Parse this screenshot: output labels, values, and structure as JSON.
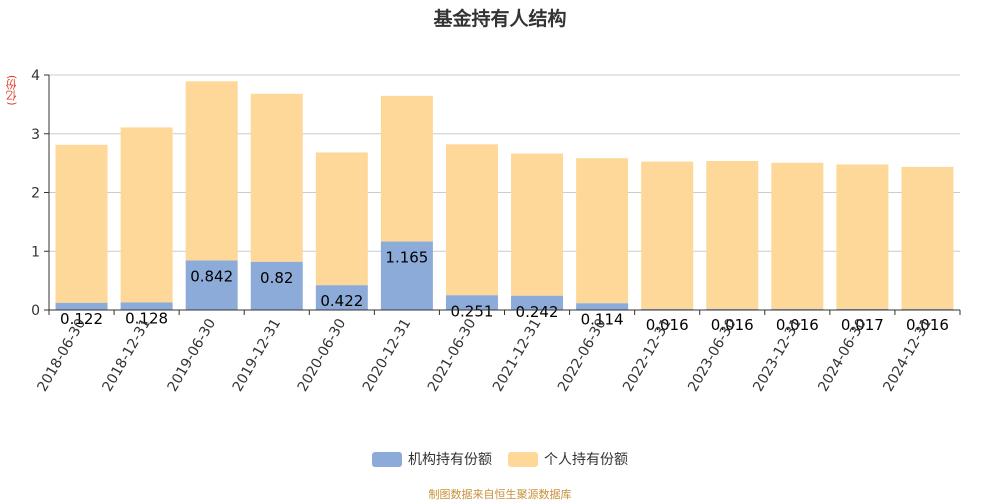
{
  "title": "基金持有人结构",
  "unit": "(亿份)",
  "source": "制图数据来自恒生聚源数据库",
  "colors": {
    "institutional": "#8dabd9",
    "individual": "#fed899",
    "axis": "#333333",
    "grid": "#cccccc",
    "label": "#000000"
  },
  "chart_data": {
    "type": "bar",
    "stacked": true,
    "categories": [
      "2018-06-30",
      "2018-12-31",
      "2019-06-30",
      "2019-12-31",
      "2020-06-30",
      "2020-12-31",
      "2021-06-30",
      "2021-12-31",
      "2022-06-30",
      "2022-12-31",
      "2023-06-30",
      "2023-12-31",
      "2024-06-30",
      "2024-12-31"
    ],
    "series": [
      {
        "name": "机构持有份额",
        "values": [
          0.122,
          0.128,
          0.842,
          0.82,
          0.422,
          1.165,
          0.251,
          0.242,
          0.114,
          0.016,
          0.016,
          0.016,
          0.017,
          0.016
        ]
      },
      {
        "name": "个人持有份额",
        "values": [
          2.69,
          2.98,
          3.05,
          2.86,
          2.26,
          2.48,
          2.57,
          2.42,
          2.47,
          2.51,
          2.52,
          2.49,
          2.46,
          2.42
        ]
      }
    ],
    "ylim": [
      0,
      4
    ],
    "yticks": [
      0,
      1,
      2,
      3,
      4
    ],
    "grid": true,
    "legend_position": "bottom-center"
  }
}
